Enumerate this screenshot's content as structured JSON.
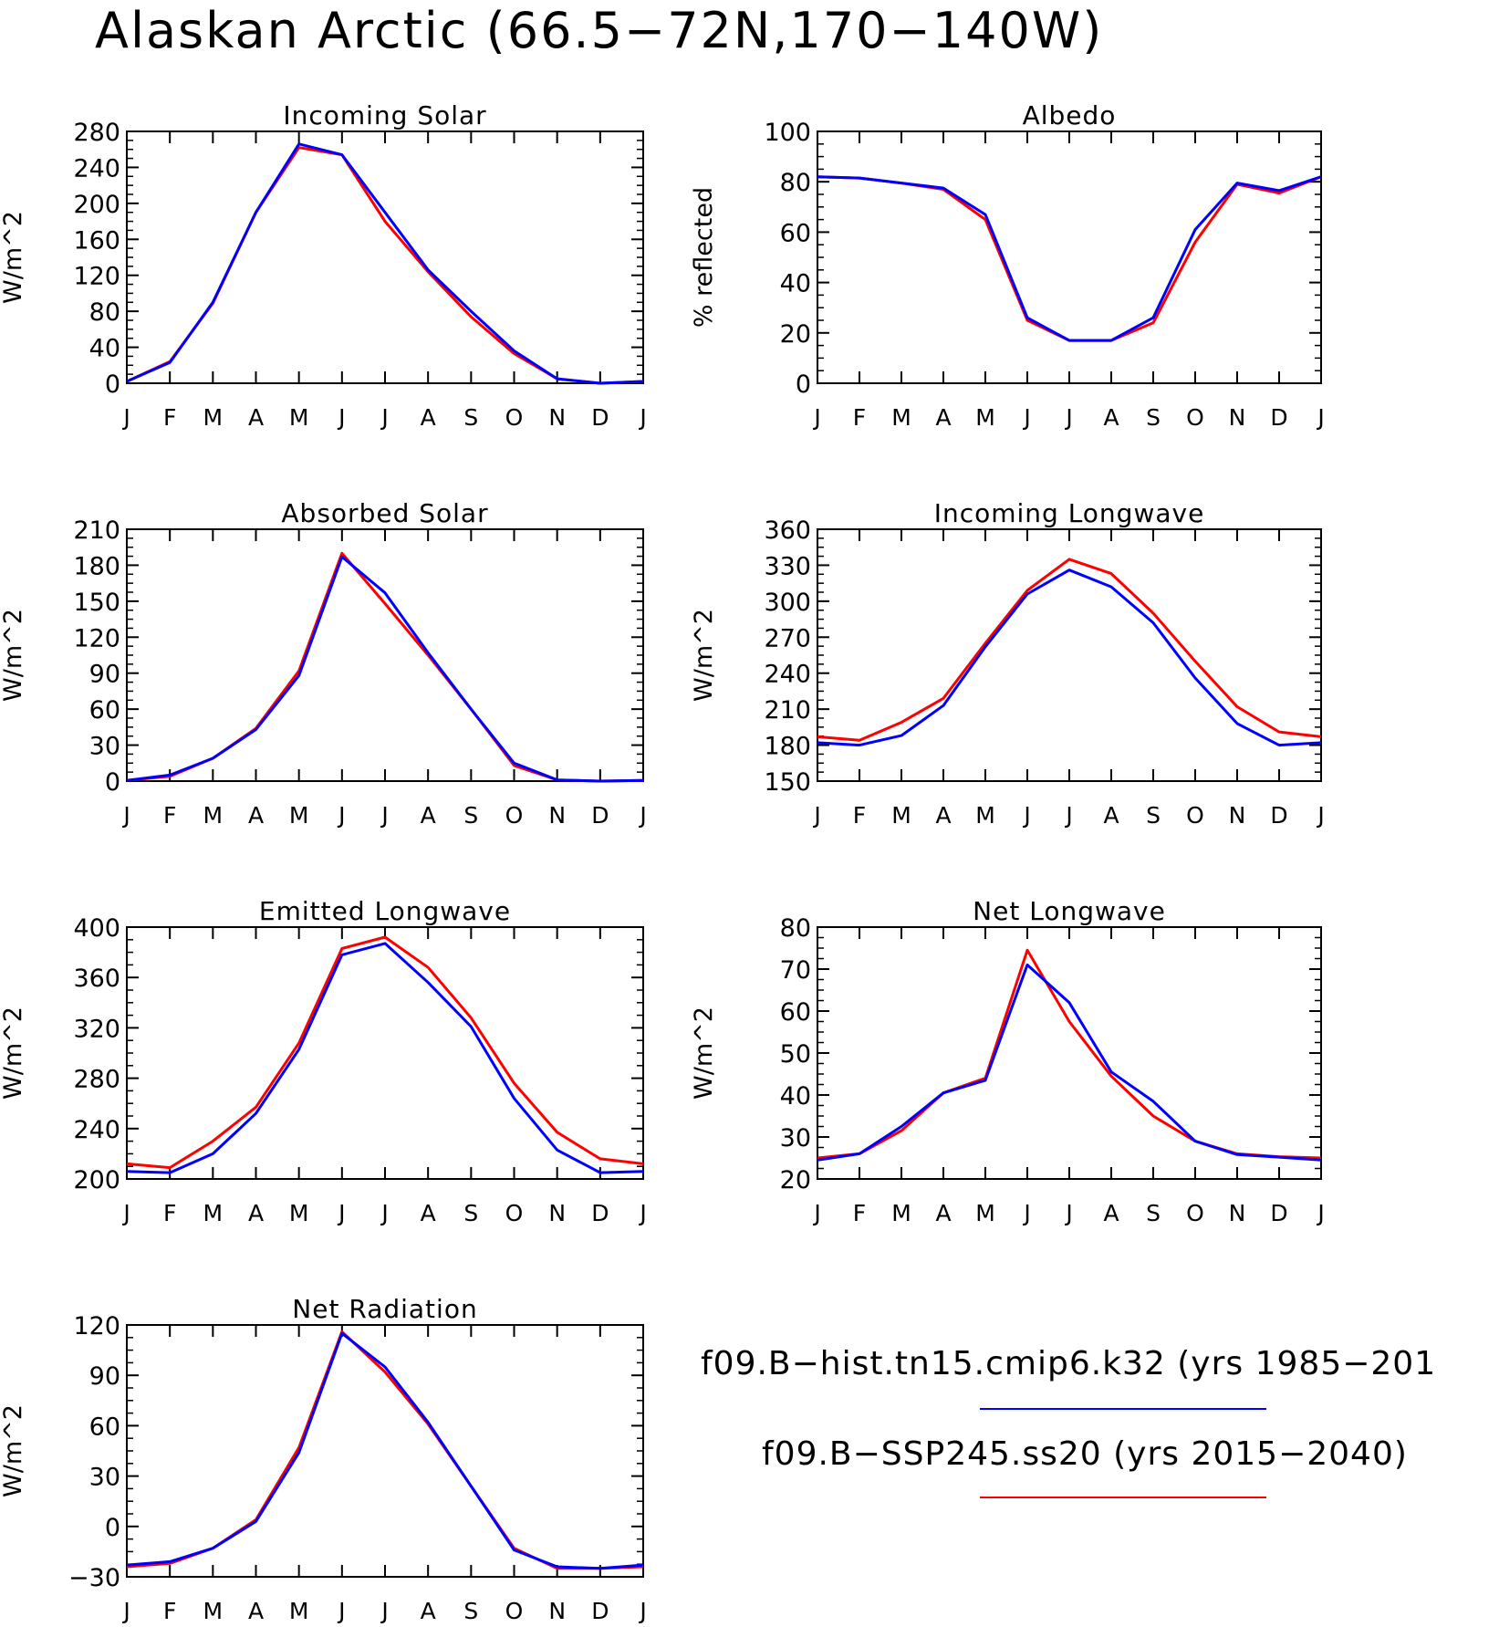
{
  "figure": {
    "title": "Alaskan Arctic (66.5−72N,170−140W)"
  },
  "legend": {
    "entries": [
      {
        "label": "f09.B−hist.tn15.cmip6.k32 (yrs 1985−201",
        "color": "#0000ff"
      },
      {
        "label": "f09.B−SSP245.ss20 (yrs 2015−2040)",
        "color": "#ff0000"
      }
    ]
  },
  "chart_data": [
    {
      "type": "line",
      "title": "Incoming Solar",
      "ylabel": "W/m^2",
      "x": [
        "J",
        "F",
        "M",
        "A",
        "M",
        "J",
        "J",
        "A",
        "S",
        "O",
        "N",
        "D",
        "J"
      ],
      "ylim": [
        0,
        280
      ],
      "yticks": [
        0,
        40,
        80,
        120,
        160,
        200,
        240,
        280
      ],
      "series": [
        {
          "color": "#ff0000",
          "values": [
            2,
            24,
            89,
            190,
            262,
            254,
            180,
            124,
            74,
            33,
            5,
            0,
            2
          ]
        },
        {
          "color": "#0000ff",
          "values": [
            2,
            23,
            90,
            190,
            266,
            254,
            190,
            126,
            80,
            36,
            5,
            0,
            2
          ]
        }
      ]
    },
    {
      "type": "line",
      "title": "Albedo",
      "ylabel": "% reflected",
      "x": [
        "J",
        "F",
        "M",
        "A",
        "M",
        "J",
        "J",
        "A",
        "S",
        "O",
        "N",
        "D",
        "J"
      ],
      "ylim": [
        0,
        100
      ],
      "yticks": [
        0,
        20,
        40,
        60,
        80,
        100
      ],
      "series": [
        {
          "color": "#ff0000",
          "values": [
            82,
            81.5,
            79.5,
            77,
            65,
            25,
            17,
            17,
            24,
            56,
            79,
            75.5,
            82
          ]
        },
        {
          "color": "#0000ff",
          "values": [
            82,
            81.5,
            79.5,
            77.5,
            67,
            26,
            17,
            17,
            26,
            61,
            79.5,
            76.5,
            82
          ]
        }
      ]
    },
    {
      "type": "line",
      "title": "Absorbed Solar",
      "ylabel": "W/m^2",
      "x": [
        "J",
        "F",
        "M",
        "A",
        "M",
        "J",
        "J",
        "A",
        "S",
        "O",
        "N",
        "D",
        "J"
      ],
      "ylim": [
        0,
        210
      ],
      "yticks": [
        0,
        30,
        60,
        90,
        120,
        150,
        180,
        210
      ],
      "series": [
        {
          "color": "#ff0000",
          "values": [
            0.5,
            4,
            19,
            44,
            92,
            190,
            148,
            105,
            60,
            13,
            1,
            0,
            0.5
          ]
        },
        {
          "color": "#0000ff",
          "values": [
            0.5,
            5,
            19,
            43,
            88,
            187,
            157,
            107,
            60,
            15,
            1,
            0,
            0.5
          ]
        }
      ]
    },
    {
      "type": "line",
      "title": "Incoming Longwave",
      "ylabel": "W/m^2",
      "x": [
        "J",
        "F",
        "M",
        "A",
        "M",
        "J",
        "J",
        "A",
        "S",
        "O",
        "N",
        "D",
        "J"
      ],
      "ylim": [
        150,
        360
      ],
      "yticks": [
        150,
        180,
        210,
        240,
        270,
        300,
        330,
        360
      ],
      "series": [
        {
          "color": "#ff0000",
          "values": [
            187,
            184,
            199,
            219,
            265,
            309,
            335,
            323,
            290,
            250,
            212,
            191,
            187
          ]
        },
        {
          "color": "#0000ff",
          "values": [
            182,
            180,
            188,
            213,
            262,
            306,
            326,
            312,
            282,
            236,
            198,
            180,
            182
          ]
        }
      ]
    },
    {
      "type": "line",
      "title": "Emitted Longwave",
      "ylabel": "W/m^2",
      "x": [
        "J",
        "F",
        "M",
        "A",
        "M",
        "J",
        "J",
        "A",
        "S",
        "O",
        "N",
        "D",
        "J"
      ],
      "ylim": [
        200,
        400
      ],
      "yticks": [
        200,
        240,
        280,
        320,
        360,
        400
      ],
      "series": [
        {
          "color": "#ff0000",
          "values": [
            212,
            209,
            230,
            257,
            308,
            383,
            392,
            368,
            328,
            276,
            237,
            216,
            212
          ]
        },
        {
          "color": "#0000ff",
          "values": [
            206,
            205,
            220,
            252,
            303,
            378,
            387,
            356,
            321,
            264,
            223,
            205,
            206
          ]
        }
      ]
    },
    {
      "type": "line",
      "title": "Net Longwave",
      "ylabel": "W/m^2",
      "x": [
        "J",
        "F",
        "M",
        "A",
        "M",
        "J",
        "J",
        "A",
        "S",
        "O",
        "N",
        "D",
        "J"
      ],
      "ylim": [
        20,
        80
      ],
      "yticks": [
        20,
        30,
        40,
        50,
        60,
        70,
        80
      ],
      "series": [
        {
          "color": "#ff0000",
          "values": [
            25,
            26,
            31.5,
            40.5,
            44,
            74.5,
            57.5,
            44.5,
            35,
            29,
            26,
            25.3,
            25
          ]
        },
        {
          "color": "#0000ff",
          "values": [
            24.5,
            26,
            32.5,
            40.5,
            43.5,
            71,
            62,
            45.5,
            38.5,
            29,
            25.8,
            25.2,
            24.5
          ]
        }
      ]
    },
    {
      "type": "line",
      "title": "Net Radiation",
      "ylabel": "W/m^2",
      "x": [
        "J",
        "F",
        "M",
        "A",
        "M",
        "J",
        "J",
        "A",
        "S",
        "O",
        "N",
        "D",
        "J"
      ],
      "ylim": [
        -30,
        120
      ],
      "yticks": [
        -30,
        0,
        30,
        60,
        90,
        120
      ],
      "series": [
        {
          "color": "#ff0000",
          "values": [
            -24,
            -22,
            -13,
            4,
            47,
            116,
            92,
            61,
            24,
            -13,
            -25,
            -25,
            -24
          ]
        },
        {
          "color": "#0000ff",
          "values": [
            -23,
            -21,
            -13,
            3,
            44,
            115,
            95,
            62,
            24,
            -14,
            -24,
            -25,
            -23
          ]
        }
      ]
    }
  ]
}
